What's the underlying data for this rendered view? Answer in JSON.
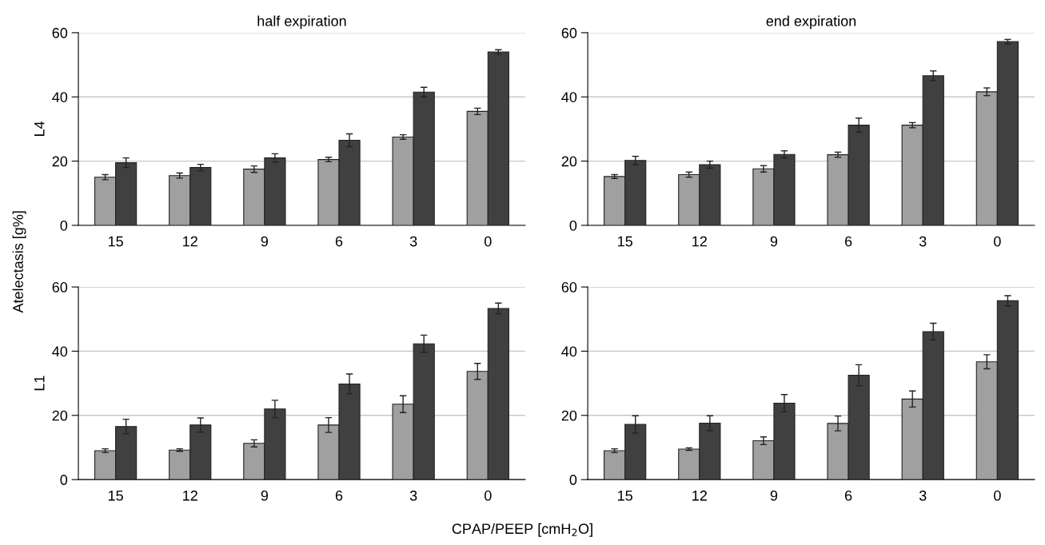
{
  "chart_data": [
    {
      "type": "bar",
      "title": "half expiration",
      "ylabel": "L4",
      "annotations": [
        "Atelectasis [g%]"
      ],
      "categories": [
        "15",
        "12",
        "9",
        "6",
        "3",
        "0"
      ],
      "ylim": [
        0,
        60
      ],
      "yticks": [
        0,
        20,
        40,
        60
      ],
      "grid": "y",
      "series": [
        {
          "color": "#a0a0a0",
          "values": [
            15,
            15.5,
            17.5,
            20.5,
            27.5,
            35.5
          ],
          "errors": [
            0.8,
            0.8,
            1,
            0.7,
            0.7,
            1
          ]
        },
        {
          "color": "#404040",
          "values": [
            19.5,
            18,
            21,
            26.5,
            41.5,
            54
          ],
          "errors": [
            1.5,
            1,
            1.3,
            2,
            1.5,
            0.7
          ]
        }
      ]
    },
    {
      "type": "bar",
      "ylabel": "L1",
      "xlabel": "CPAP/PEEP [cmH$_{2}$O]",
      "categories": [
        "15",
        "12",
        "9",
        "6",
        "3",
        "0"
      ],
      "ylim": [
        0,
        60
      ],
      "yticks": [
        0,
        20,
        40,
        60
      ],
      "grid": "y",
      "series": [
        {
          "color": "#a0a0a0",
          "values": [
            9,
            9.2,
            11.3,
            17,
            23.5,
            33.7
          ],
          "errors": [
            0.6,
            0.4,
            1.1,
            2.3,
            2.6,
            2.5
          ]
        },
        {
          "color": "#404040",
          "values": [
            16.5,
            17,
            22,
            29.8,
            42.3,
            53.3
          ],
          "errors": [
            2.3,
            2.2,
            2.7,
            3.1,
            2.7,
            1.7
          ]
        }
      ]
    },
    {
      "type": "bar",
      "title": "end expiration",
      "categories": [
        "15",
        "12",
        "9",
        "6",
        "3",
        "0"
      ],
      "ylim": [
        0,
        60
      ],
      "yticks": [
        0,
        20,
        40,
        60
      ],
      "grid": "y",
      "series": [
        {
          "color": "#a0a0a0",
          "values": [
            15.2,
            15.8,
            17.6,
            22,
            31.2,
            41.6
          ],
          "errors": [
            0.6,
            0.8,
            1,
            0.8,
            0.8,
            1.2
          ]
        },
        {
          "color": "#404040",
          "values": [
            20.2,
            18.9,
            22.1,
            31.2,
            46.6,
            57.2
          ],
          "errors": [
            1.3,
            1.1,
            1.1,
            2.2,
            1.5,
            0.7
          ]
        }
      ]
    },
    {
      "type": "bar",
      "categories": [
        "15",
        "12",
        "9",
        "6",
        "3",
        "0"
      ],
      "ylim": [
        0,
        60
      ],
      "yticks": [
        0,
        20,
        40,
        60
      ],
      "grid": "y",
      "series": [
        {
          "color": "#a0a0a0",
          "values": [
            9,
            9.5,
            12.1,
            17.5,
            25.1,
            36.7
          ],
          "errors": [
            0.6,
            0.4,
            1.2,
            2.3,
            2.5,
            2.2
          ]
        },
        {
          "color": "#404040",
          "values": [
            17.2,
            17.6,
            23.8,
            32.5,
            46.1,
            55.7
          ],
          "errors": [
            2.7,
            2.3,
            2.7,
            3.3,
            2.6,
            1.6
          ]
        }
      ]
    }
  ]
}
